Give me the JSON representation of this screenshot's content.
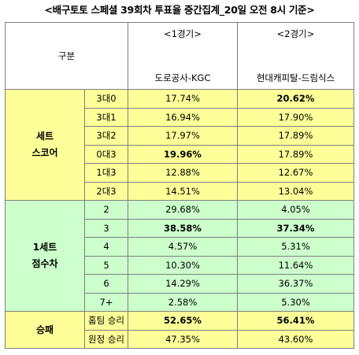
{
  "title": "<배구토토 스페셜 39회차 투표율 중간집계_20일 오전 8시 기준>",
  "header": {
    "category": "구분",
    "game1_number": "<1경기>",
    "game1_teams": "도로공사-KGC",
    "game2_number": "<2경기>",
    "game2_teams": "현대캐피탈-드림식스"
  },
  "groups": {
    "set_score": {
      "line1": "세트",
      "line2": "스코어"
    },
    "set_diff": {
      "line1": "1세트",
      "line2": "점수차"
    },
    "win_loss": {
      "label": "승패"
    }
  },
  "rows": [
    {
      "label": "3대0",
      "g1": "17.74%",
      "g2": "20.62%"
    },
    {
      "label": "3대1",
      "g1": "16.94%",
      "g2": "17.90%"
    },
    {
      "label": "3대2",
      "g1": "17.97%",
      "g2": "17.89%"
    },
    {
      "label": "0대3",
      "g1": "19.96%",
      "g2": "17.89%"
    },
    {
      "label": "1대3",
      "g1": "12.88%",
      "g2": "12.67%"
    },
    {
      "label": "2대3",
      "g1": "14.51%",
      "g2": "13.04%"
    },
    {
      "label": "2",
      "g1": "29.68%",
      "g2": "4.05%"
    },
    {
      "label": "3",
      "g1": "38.58%",
      "g2": "37.34%"
    },
    {
      "label": "4",
      "g1": "4.57%",
      "g2": "5.31%"
    },
    {
      "label": "5",
      "g1": "10.30%",
      "g2": "11.64%"
    },
    {
      "label": "6",
      "g1": "14.29%",
      "g2": "36.37%"
    },
    {
      "label": "7+",
      "g1": "2.58%",
      "g2": "5.30%"
    },
    {
      "label": "홈팀 승리",
      "g1": "52.65%",
      "g2": "56.41%"
    },
    {
      "label": "원정 승리",
      "g1": "47.35%",
      "g2": "43.60%"
    }
  ],
  "colors": {
    "yellow": "#ffff99",
    "green": "#ccffcc",
    "border": "#7f7f7f"
  }
}
